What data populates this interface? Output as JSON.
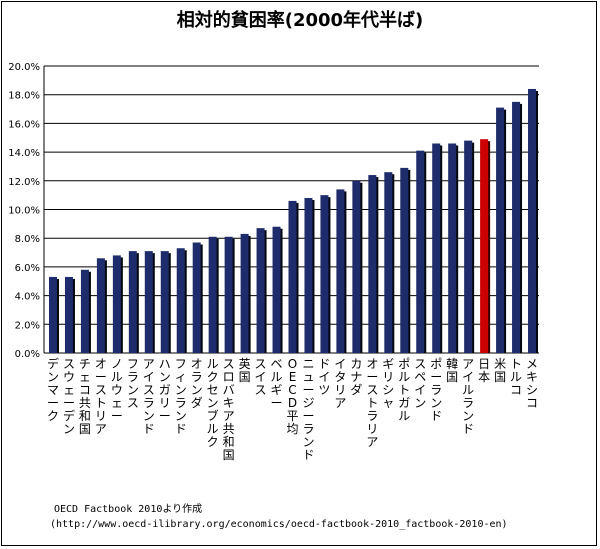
{
  "chart_data": {
    "type": "bar",
    "title": "相対的貧困率(2000年代半ば)",
    "ylabel": "",
    "xlabel": "",
    "ylim": [
      0,
      20
    ],
    "y_ticks": [
      "0.0%",
      "2.0%",
      "4.0%",
      "6.0%",
      "8.0%",
      "10.0%",
      "12.0%",
      "14.0%",
      "16.0%",
      "18.0%",
      "20.0%"
    ],
    "grid": true,
    "categories": [
      "デンマーク",
      "スウェーデン",
      "チェコ共和国",
      "オーストリア",
      "ノルウェー",
      "フランス",
      "アイスランド",
      "ハンガリー",
      "フィンランド",
      "オランダ",
      "ルクセンブルク",
      "スロバキア共和国",
      "英国",
      "スイス",
      "ベルギー",
      "OECD平均",
      "ニュージーランド",
      "ドイツ",
      "イタリア",
      "カナダ",
      "オーストラリア",
      "ギリシャ",
      "ポルトガル",
      "スペイン",
      "ポーランド",
      "韓国",
      "アイルランド",
      "日本",
      "米国",
      "トルコ",
      "メキシコ"
    ],
    "values": [
      5.3,
      5.3,
      5.8,
      6.6,
      6.8,
      7.1,
      7.1,
      7.1,
      7.3,
      7.7,
      8.1,
      8.1,
      8.3,
      8.7,
      8.8,
      10.6,
      10.8,
      11.0,
      11.4,
      12.0,
      12.4,
      12.6,
      12.9,
      14.1,
      14.6,
      14.6,
      14.8,
      14.9,
      17.1,
      17.5,
      18.4
    ],
    "highlight_category": "日本",
    "colors": {
      "bar": "#1f2c6b",
      "bar_shadow": "#05070f",
      "highlight": "#cc0000",
      "highlight_shadow": "#3a0000",
      "grid": "#000000"
    }
  },
  "notes": {
    "source": "OECD Factbook 2010より作成",
    "url": "(http://www.oecd-ilibrary.org/economics/oecd-factbook-2010_factbook-2010-en)"
  }
}
